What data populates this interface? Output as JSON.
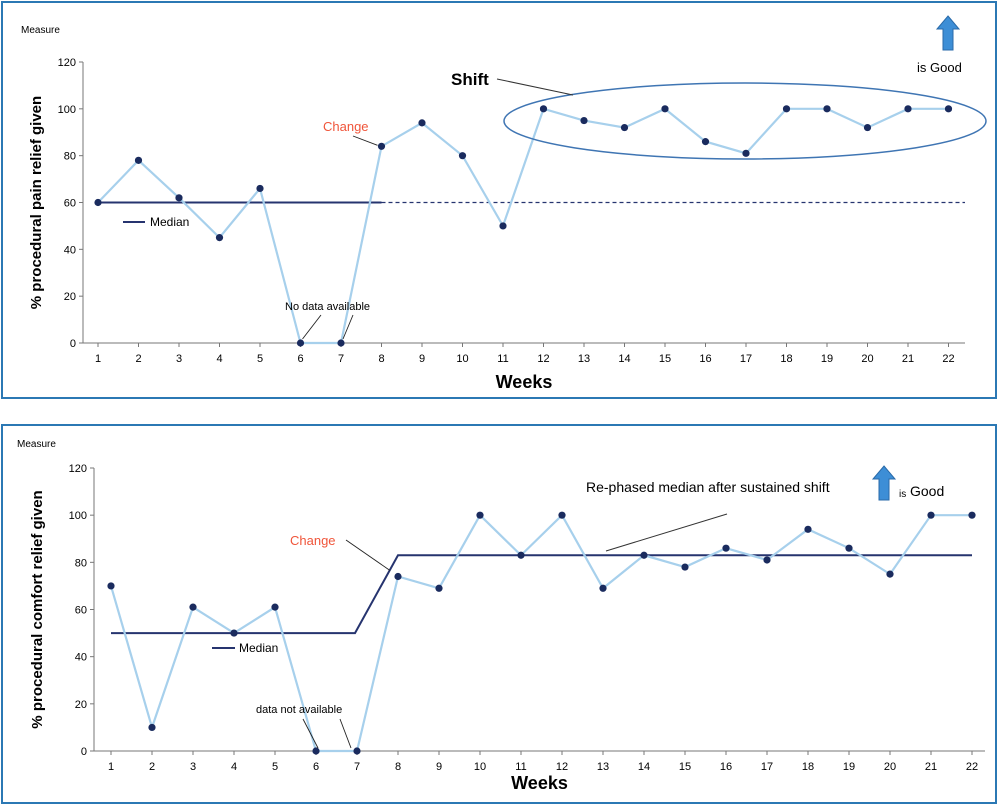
{
  "colors": {
    "frame": "#2b78b4",
    "line": "#a7d0ec",
    "point": "#1a2b5e",
    "median": "#26346f",
    "change": "#f0553a",
    "arrow": "#3d8ed6",
    "text": "#000000"
  },
  "chart_data": [
    {
      "type": "line",
      "corner_label": "Measure",
      "xlabel": "Weeks",
      "ylabel": "% procedural pain relief given",
      "ylim": [
        0,
        120
      ],
      "yticks": [
        0,
        20,
        40,
        60,
        80,
        100,
        120
      ],
      "categories": [
        "1",
        "2",
        "3",
        "4",
        "5",
        "6",
        "7",
        "8",
        "9",
        "10",
        "11",
        "12",
        "13",
        "14",
        "15",
        "16",
        "17",
        "18",
        "19",
        "20",
        "21",
        "22"
      ],
      "values": [
        60,
        78,
        62,
        45,
        66,
        0,
        0,
        84,
        94,
        80,
        50,
        100,
        95,
        92,
        100,
        86,
        81,
        100,
        100,
        92,
        100,
        100
      ],
      "median": {
        "label": "Median",
        "value": 60,
        "solid_until_week": 8,
        "dashed_after": true
      },
      "annotations": {
        "change": "Change",
        "no_data": "No data available",
        "shift": "Shift",
        "good": "is Good"
      }
    },
    {
      "type": "line",
      "corner_label": "Measure",
      "xlabel": "Weeks",
      "ylabel": "% procedural comfort relief given",
      "ylim": [
        0,
        120
      ],
      "yticks": [
        0,
        20,
        40,
        60,
        80,
        100,
        120
      ],
      "categories": [
        "1",
        "2",
        "3",
        "4",
        "5",
        "6",
        "7",
        "8",
        "9",
        "10",
        "11",
        "12",
        "13",
        "14",
        "15",
        "16",
        "17",
        "18",
        "19",
        "20",
        "21",
        "22"
      ],
      "values": [
        70,
        10,
        61,
        50,
        61,
        0,
        0,
        74,
        69,
        100,
        83,
        100,
        69,
        83,
        78,
        86,
        81,
        94,
        86,
        75,
        100,
        100
      ],
      "median": {
        "label": "Median",
        "segments": [
          {
            "from_week": 1,
            "to_week": 7,
            "value": 50
          },
          {
            "from_week": 8,
            "to_week": 22,
            "value": 83
          }
        ]
      },
      "annotations": {
        "change": "Change",
        "no_data": "data not available",
        "rephased": "Re-phased median after sustained shift",
        "good_prefix": "is",
        "good": "Good"
      }
    }
  ]
}
